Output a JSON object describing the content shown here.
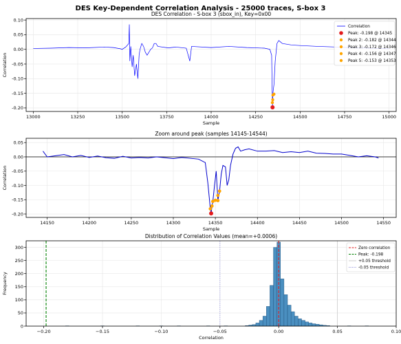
{
  "figure_title": "DES Key-Dependent Correlation Analysis - 25000 traces, S-box 3",
  "chart_data": [
    {
      "type": "line",
      "title": "DES Correlation - S-box 3 (sbox_in), Key=0x00",
      "xlabel": "Sample",
      "ylabel": "Correlation",
      "xlim": [
        12960,
        15040
      ],
      "ylim": [
        -0.212,
        0.105
      ],
      "xticks": [
        13000,
        13250,
        13500,
        13750,
        14000,
        14250,
        14500,
        14750,
        15000
      ],
      "yticks": [
        0.1,
        0.05,
        0.0,
        -0.05,
        -0.1,
        -0.15,
        -0.2
      ],
      "xtick_labels": [
        "13000",
        "13250",
        "13500",
        "13750",
        "14000",
        "14250",
        "14500",
        "14750",
        "15000"
      ],
      "ytick_labels": [
        "0.10",
        "0.05",
        "0.00",
        "-0.05",
        "-0.10",
        "-0.15",
        "-0.20"
      ],
      "grid": true,
      "legend_position": "top-right",
      "series": [
        {
          "name": "Correlation",
          "color": "#0000ff",
          "points": [
            [
              13000,
              0.003
            ],
            [
              13100,
              0.004
            ],
            [
              13200,
              0.006
            ],
            [
              13300,
              0.005
            ],
            [
              13400,
              0.008
            ],
            [
              13450,
              0.006
            ],
            [
              13490,
              0.002
            ],
            [
              13500,
              0.0
            ],
            [
              13520,
              0.008
            ],
            [
              13537,
              0.02
            ],
            [
              13540,
              0.085
            ],
            [
              13543,
              -0.04
            ],
            [
              13548,
              0.01
            ],
            [
              13556,
              -0.06
            ],
            [
              13562,
              -0.02
            ],
            [
              13570,
              -0.09
            ],
            [
              13580,
              -0.05
            ],
            [
              13588,
              -0.1
            ],
            [
              13595,
              -0.02
            ],
            [
              13600,
              0.0
            ],
            [
              13610,
              0.02
            ],
            [
              13620,
              0.01
            ],
            [
              13630,
              -0.01
            ],
            [
              13640,
              -0.02
            ],
            [
              13650,
              -0.01
            ],
            [
              13660,
              0.0
            ],
            [
              13670,
              0.005
            ],
            [
              13680,
              0.02
            ],
            [
              13690,
              0.02
            ],
            [
              13700,
              0.01
            ],
            [
              13760,
              0.005
            ],
            [
              13800,
              0.008
            ],
            [
              13860,
              0.004
            ],
            [
              13880,
              -0.04
            ],
            [
              13890,
              0.01
            ],
            [
              14000,
              0.006
            ],
            [
              14100,
              0.01
            ],
            [
              14200,
              0.006
            ],
            [
              14300,
              0.004
            ],
            [
              14330,
              0.0
            ],
            [
              14340,
              -0.02
            ],
            [
              14344,
              -0.18
            ],
            [
              14345,
              -0.198
            ],
            [
              14347,
              -0.15
            ],
            [
              14353,
              -0.12
            ],
            [
              14360,
              -0.04
            ],
            [
              14370,
              0.02
            ],
            [
              14380,
              0.03
            ],
            [
              14400,
              0.02
            ],
            [
              14450,
              0.015
            ],
            [
              14500,
              0.013
            ],
            [
              14600,
              0.01
            ],
            [
              14700,
              0.008
            ],
            [
              14800,
              0.005
            ],
            [
              14900,
              0.004
            ],
            [
              15000,
              0.002
            ]
          ]
        }
      ],
      "peaks": [
        {
          "label": "Peak: -0.198 @ 14345",
          "x": 14345,
          "y": -0.198,
          "color": "#e31a1c",
          "size": "large"
        },
        {
          "label": "Peak 2: -0.182 @ 14344",
          "x": 14344,
          "y": -0.182,
          "color": "#ffa500",
          "size": "small"
        },
        {
          "label": "Peak 3: -0.172 @ 14346",
          "x": 14346,
          "y": -0.172,
          "color": "#ffa500",
          "size": "small"
        },
        {
          "label": "Peak 4: -0.156 @ 14347",
          "x": 14347,
          "y": -0.156,
          "color": "#ffa500",
          "size": "small"
        },
        {
          "label": "Peak 5: -0.153 @ 14353",
          "x": 14353,
          "y": -0.153,
          "color": "#ffa500",
          "size": "small"
        }
      ]
    },
    {
      "type": "line",
      "title": "Zoom around peak (samples 14145-14544)",
      "xlabel": "Sample",
      "ylabel": "Correlation",
      "xlim": [
        14125,
        14565
      ],
      "ylim": [
        -0.212,
        0.065
      ],
      "xticks": [
        14150,
        14200,
        14250,
        14300,
        14350,
        14400,
        14450,
        14500,
        14550
      ],
      "yticks": [
        0.05,
        0.0,
        -0.05,
        -0.1,
        -0.15,
        -0.2
      ],
      "xtick_labels": [
        "14150",
        "14200",
        "14250",
        "14300",
        "14350",
        "14400",
        "14450",
        "14500",
        "14550"
      ],
      "ytick_labels": [
        "0.05",
        "0.00",
        "-0.05",
        "-0.10",
        "-0.15",
        "-0.20"
      ],
      "grid": true,
      "series": [
        {
          "color": "#0000cc",
          "points": [
            [
              14145,
              0.02
            ],
            [
              14150,
              0.0
            ],
            [
              14160,
              0.004
            ],
            [
              14170,
              0.008
            ],
            [
              14180,
              0.0
            ],
            [
              14190,
              0.005
            ],
            [
              14200,
              -0.002
            ],
            [
              14210,
              0.003
            ],
            [
              14220,
              -0.003
            ],
            [
              14230,
              -0.005
            ],
            [
              14240,
              0.002
            ],
            [
              14250,
              -0.004
            ],
            [
              14260,
              -0.002
            ],
            [
              14270,
              -0.004
            ],
            [
              14280,
              0.0
            ],
            [
              14290,
              -0.003
            ],
            [
              14300,
              -0.006
            ],
            [
              14310,
              -0.002
            ],
            [
              14320,
              -0.005
            ],
            [
              14330,
              -0.008
            ],
            [
              14338,
              -0.02
            ],
            [
              14341,
              -0.09
            ],
            [
              14343,
              -0.15
            ],
            [
              14344,
              -0.182
            ],
            [
              14345,
              -0.198
            ],
            [
              14346,
              -0.172
            ],
            [
              14347,
              -0.156
            ],
            [
              14349,
              -0.1
            ],
            [
              14351,
              -0.05
            ],
            [
              14353,
              -0.153
            ],
            [
              14355,
              -0.12
            ],
            [
              14357,
              -0.06
            ],
            [
              14359,
              -0.03
            ],
            [
              14362,
              -0.035
            ],
            [
              14364,
              -0.1
            ],
            [
              14366,
              -0.08
            ],
            [
              14368,
              -0.03
            ],
            [
              14371,
              0.01
            ],
            [
              14374,
              0.03
            ],
            [
              14377,
              0.035
            ],
            [
              14380,
              0.02
            ],
            [
              14385,
              0.025
            ],
            [
              14390,
              0.028
            ],
            [
              14400,
              0.02
            ],
            [
              14410,
              0.02
            ],
            [
              14420,
              0.022
            ],
            [
              14430,
              0.015
            ],
            [
              14440,
              0.018
            ],
            [
              14450,
              0.015
            ],
            [
              14460,
              0.02
            ],
            [
              14470,
              0.013
            ],
            [
              14480,
              0.012
            ],
            [
              14490,
              0.01
            ],
            [
              14500,
              0.01
            ],
            [
              14510,
              0.005
            ],
            [
              14520,
              0.0
            ],
            [
              14530,
              0.004
            ],
            [
              14540,
              0.0
            ],
            [
              14544,
              -0.004
            ]
          ]
        }
      ],
      "reference_line_y": 0.0,
      "peaks": [
        {
          "x": 14345,
          "y": -0.198,
          "color": "#e31a1c",
          "size": "large"
        },
        {
          "x": 14344,
          "y": -0.182,
          "color": "#ffa500",
          "size": "small"
        },
        {
          "x": 14346,
          "y": -0.172,
          "color": "#ffa500",
          "size": "small"
        },
        {
          "x": 14347,
          "y": -0.156,
          "color": "#ffa500",
          "size": "small"
        },
        {
          "x": 14353,
          "y": -0.153,
          "color": "#ffa500",
          "size": "small"
        },
        {
          "x": 14350,
          "y": -0.152,
          "color": "#ffa500",
          "size": "small"
        },
        {
          "x": 14353,
          "y": -0.135,
          "color": "#ffa500",
          "size": "small"
        },
        {
          "x": 14355,
          "y": -0.12,
          "color": "#ffa500",
          "size": "small"
        }
      ]
    },
    {
      "type": "bar",
      "title": "Distribution of Correlation Values (mean=+0.0006)",
      "xlabel": "Correlation",
      "ylabel": "Frequency",
      "xlim": [
        -0.215,
        0.1
      ],
      "ylim": [
        0,
        325
      ],
      "xticks": [
        -0.2,
        -0.15,
        -0.1,
        -0.05,
        0.0,
        0.05,
        0.1
      ],
      "yticks": [
        0,
        50,
        100,
        150,
        200,
        250,
        300
      ],
      "xtick_labels": [
        "−0.20",
        "−0.15",
        "−0.10",
        "−0.05",
        "0.00",
        "0.05",
        "0.10"
      ],
      "ytick_labels": [
        "0",
        "50",
        "100",
        "150",
        "200",
        "250",
        "300"
      ],
      "grid": true,
      "legend_position": "top-right",
      "bin_width": 0.003,
      "bins": [
        {
          "x": -0.027,
          "count": 2
        },
        {
          "x": -0.024,
          "count": 4
        },
        {
          "x": -0.021,
          "count": 6
        },
        {
          "x": -0.018,
          "count": 12
        },
        {
          "x": -0.015,
          "count": 22
        },
        {
          "x": -0.012,
          "count": 38
        },
        {
          "x": -0.009,
          "count": 75
        },
        {
          "x": -0.006,
          "count": 155
        },
        {
          "x": -0.003,
          "count": 300
        },
        {
          "x": 0.0,
          "count": 320
        },
        {
          "x": 0.003,
          "count": 180
        },
        {
          "x": 0.006,
          "count": 120
        },
        {
          "x": 0.009,
          "count": 80
        },
        {
          "x": 0.012,
          "count": 55
        },
        {
          "x": 0.015,
          "count": 38
        },
        {
          "x": 0.018,
          "count": 28
        },
        {
          "x": 0.021,
          "count": 22
        },
        {
          "x": 0.024,
          "count": 16
        },
        {
          "x": 0.027,
          "count": 12
        },
        {
          "x": 0.03,
          "count": 9
        },
        {
          "x": 0.033,
          "count": 7
        },
        {
          "x": 0.036,
          "count": 5
        },
        {
          "x": 0.039,
          "count": 3
        },
        {
          "x": 0.042,
          "count": 2
        },
        {
          "x": -0.15,
          "count": 1
        },
        {
          "x": -0.18,
          "count": 1
        },
        {
          "x": -0.12,
          "count": 1
        },
        {
          "x": -0.1,
          "count": 1
        },
        {
          "x": -0.085,
          "count": 1
        },
        {
          "x": -0.06,
          "count": 1
        },
        {
          "x": -0.045,
          "count": 1
        },
        {
          "x": 0.06,
          "count": 1
        },
        {
          "x": 0.075,
          "count": 1
        }
      ],
      "reference_lines": [
        {
          "label": "Zero correlation",
          "x": 0.0,
          "color": "#e31a1c",
          "style": "dashed"
        },
        {
          "label": "Peak: -0.198",
          "x": -0.198,
          "color": "#008000",
          "style": "dashed"
        },
        {
          "label": "+0.05 threshold",
          "x": 0.05,
          "color": "#cccccc",
          "style": "solid"
        },
        {
          "label": "-0.05 threshold",
          "x": -0.05,
          "color": "#9999dd",
          "style": "dotted"
        }
      ]
    }
  ]
}
